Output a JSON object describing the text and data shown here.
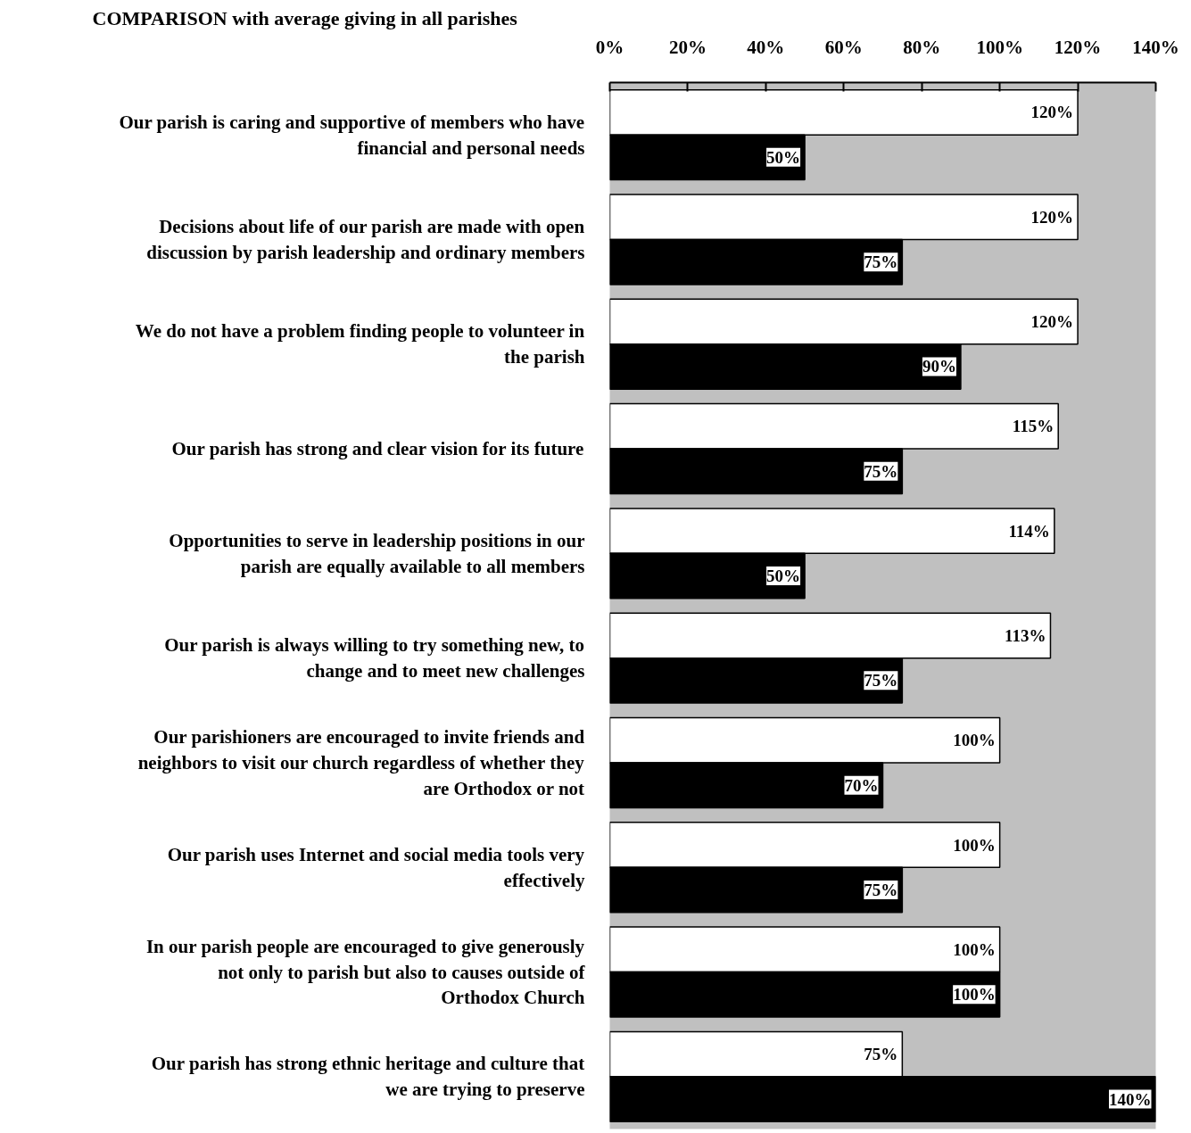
{
  "chart_data": {
    "type": "bar",
    "orientation": "horizontal",
    "title": "COMPARISON with average giving in all parishes",
    "categories": [
      "Our parish is caring and supportive of members who have financial and personal needs",
      "Decisions about life of our parish are made with open discussion by parish leadership and ordinary members",
      "We do not have a problem finding people to volunteer in the parish",
      "Our parish has strong and clear vision for its future",
      "Opportunities to serve in leadership positions in our parish are equally available to all members",
      "Our parish is always willing to try something new, to change and to meet new challenges",
      "Our parishioners are encouraged to invite friends and neighbors to visit our church regardless of whether they are Orthodox or not",
      "Our parish uses Internet and social media tools very effectively",
      "In our parish people are encouraged to give generously not only to parish but also to causes outside of Orthodox Church",
      "Our parish has strong ethnic heritage and culture that we are trying to preserve"
    ],
    "series": [
      {
        "color": "#ffffff",
        "values": [
          120,
          120,
          120,
          115,
          114,
          113,
          100,
          100,
          100,
          75
        ]
      },
      {
        "color": "#000000",
        "values": [
          50,
          75,
          90,
          75,
          50,
          75,
          70,
          75,
          100,
          140
        ]
      }
    ],
    "xlim": [
      0,
      140
    ],
    "xticks": [
      {
        "value": 0,
        "label": "0%"
      },
      {
        "value": 20,
        "label": "20%"
      },
      {
        "value": 40,
        "label": "40%"
      },
      {
        "value": 60,
        "label": "60%"
      },
      {
        "value": 80,
        "label": "80%"
      },
      {
        "value": 100,
        "label": "100%"
      },
      {
        "value": 120,
        "label": "120%"
      },
      {
        "value": 140,
        "label": "140%"
      }
    ],
    "value_labels": [
      [
        "120%",
        "120%",
        "120%",
        "115%",
        "114%",
        "113%",
        "100%",
        "100%",
        "100%",
        "75%"
      ],
      [
        "50%",
        "75%",
        "90%",
        "75%",
        "50%",
        "75%",
        "70%",
        "75%",
        "100%",
        "140%"
      ]
    ],
    "grid": false
  }
}
